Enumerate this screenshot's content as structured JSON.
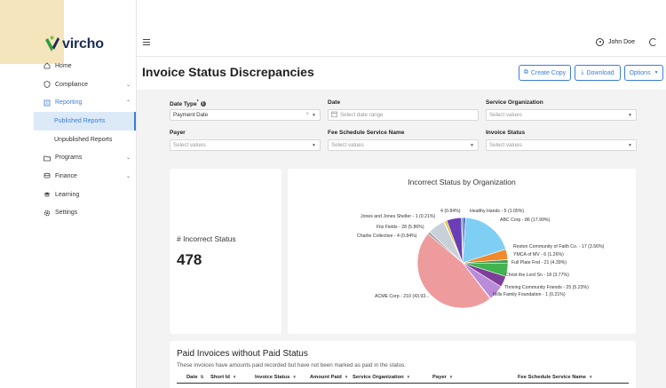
{
  "app": {
    "logo_text": "vircho"
  },
  "nav": {
    "home": "Home",
    "compliance": "Compliance",
    "reporting": "Reporting",
    "published_reports": "Published Reports",
    "unpublished_reports": "Unpublished Reports",
    "programs": "Programs",
    "finance": "Finance",
    "learning": "Learning",
    "settings": "Settings"
  },
  "topbar": {
    "user_name": "John Doe"
  },
  "header": {
    "title": "Invoice Status Discrepancies",
    "create_copy": "Create Copy",
    "download": "Download",
    "options": "Options"
  },
  "filters": {
    "date_type": {
      "label": "Date Type",
      "required_mark": "*",
      "value": "Payment Date"
    },
    "date": {
      "label": "Date",
      "placeholder": "Select date range"
    },
    "service_org": {
      "label": "Service Organization",
      "placeholder": "Select values"
    },
    "payer": {
      "label": "Payer",
      "placeholder": "Select values"
    },
    "fee_schedule": {
      "label": "Fee Schedule Service Name",
      "placeholder": "Select values"
    },
    "invoice_status": {
      "label": "Invoice Status",
      "placeholder": "Select values"
    }
  },
  "stat": {
    "label": "# Incorrect Status",
    "value": "478"
  },
  "chart_data": {
    "type": "pie",
    "title": "Incorrect Status by Organization",
    "slices": [
      {
        "label": "Healthy Hands - 5 (1.05%)",
        "value": 1.05,
        "color": "#5a6fd6"
      },
      {
        "label": "ABC Corp - 86 (17.99%)",
        "value": 17.99,
        "color": "#7fcff5"
      },
      {
        "label": "Reston Community of Faith Co. - 17 (3.56%)",
        "value": 3.56,
        "color": "#f08a2c"
      },
      {
        "label": "YMCA of MV - 6 (1.26%)",
        "value": 1.26,
        "color": "#3f9e4f"
      },
      {
        "label": "Full Plate Fnd - 21 (4.39%)",
        "value": 4.39,
        "color": "#41b34f"
      },
      {
        "label": "Christ the Lord Sn - 18 (3.77%)",
        "value": 3.77,
        "color": "#7f3f99"
      },
      {
        "label": "Thriving Community Friends - 25 (5.23%)",
        "value": 5.23,
        "color": "#b98bd9"
      },
      {
        "label": "Mills Family Foundation - 1 (0.21%)",
        "value": 0.21,
        "color": "#8a5a44"
      },
      {
        "label": "ACME Corp - 210 (43.93...",
        "value": 43.93,
        "color": "#ee9b9e"
      },
      {
        "label": "Charlie Collective - 4 (0.84%)",
        "value": 0.84,
        "color": "#9e9e9e"
      },
      {
        "label": "Fitz Fields - 28 (5.86%)",
        "value": 5.86,
        "color": "#c9d1d8"
      },
      {
        "label": "Jones and Jones Shelter - 1 (0.21%)",
        "value": 0.21,
        "color": "#bcbd22"
      },
      {
        "label": "4 (0.84%)",
        "value": 0.84,
        "color": "#e6c229"
      },
      {
        "label": "",
        "value": 5.02,
        "color": "#6a3fb5"
      },
      {
        "label": "",
        "value": 0.4,
        "color": "#2f9d8f"
      }
    ]
  },
  "table": {
    "title": "Paid Invoices without Paid Status",
    "subtitle": "These invoices have amounts paid recorded but have not been marked as paid in the status.",
    "columns": [
      "Date",
      "Short Id",
      "Invoice Status",
      "Amount Paid",
      "Service Organization",
      "Payer",
      "Fee Schedule Service Name"
    ]
  }
}
